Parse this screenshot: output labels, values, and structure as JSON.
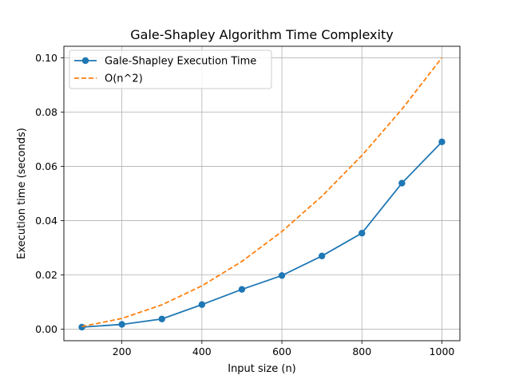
{
  "chart_data": {
    "type": "line",
    "title": "Gale-Shapley Algorithm Time Complexity",
    "xlabel": "Input size (n)",
    "ylabel": "Execution time (seconds)",
    "x": [
      100,
      200,
      300,
      400,
      500,
      600,
      700,
      800,
      900,
      1000
    ],
    "series": [
      {
        "name": "Gale-Shapley Execution Time",
        "values": [
          0.0008,
          0.0018,
          0.0038,
          0.0091,
          0.0147,
          0.0198,
          0.027,
          0.0354,
          0.0538,
          0.069
        ],
        "color": "#1f77b4",
        "style": "solid",
        "marker": "circle"
      },
      {
        "name": "O(n^2)",
        "values": [
          0.001,
          0.004,
          0.009,
          0.016,
          0.025,
          0.036,
          0.049,
          0.064,
          0.081,
          0.1
        ],
        "color": "#ff7f0e",
        "style": "dashed",
        "marker": "none"
      }
    ],
    "xticks": [
      "200",
      "400",
      "600",
      "800",
      "1000"
    ],
    "xtick_values": [
      200,
      400,
      600,
      800,
      1000
    ],
    "yticks": [
      "0.00",
      "0.02",
      "0.04",
      "0.06",
      "0.08",
      "0.10"
    ],
    "ytick_values": [
      0,
      0.02,
      0.04,
      0.06,
      0.08,
      0.1
    ],
    "xlim": [
      55,
      1045
    ],
    "ylim": [
      -0.0042,
      0.1042
    ],
    "grid": true,
    "legend_position": "upper-left"
  }
}
